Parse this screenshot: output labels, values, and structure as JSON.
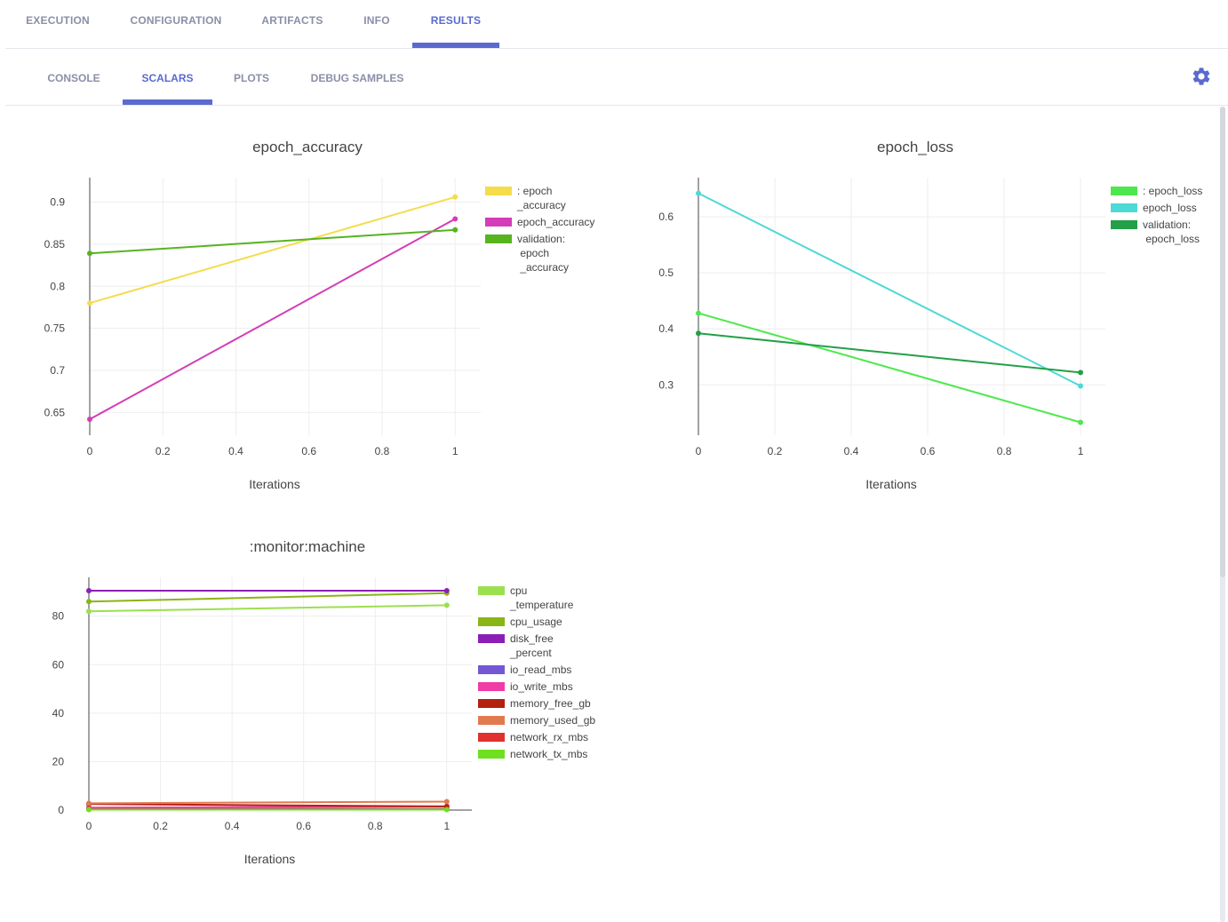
{
  "top_tabs": [
    {
      "label": "EXECUTION",
      "active": false
    },
    {
      "label": "CONFIGURATION",
      "active": false
    },
    {
      "label": "ARTIFACTS",
      "active": false
    },
    {
      "label": "INFO",
      "active": false
    },
    {
      "label": "RESULTS",
      "active": true
    }
  ],
  "sub_tabs": [
    {
      "label": "CONSOLE",
      "active": false
    },
    {
      "label": "SCALARS",
      "active": true
    },
    {
      "label": "PLOTS",
      "active": false
    },
    {
      "label": "DEBUG SAMPLES",
      "active": false
    }
  ],
  "colors": {
    "accent": "#5a6acf",
    "tab_inactive": "#8b8fa8"
  },
  "settings_icon": "gear-icon",
  "chart_data": [
    {
      "type": "line",
      "title": "epoch_accuracy",
      "xlabel": "Iterations",
      "ylabel": "",
      "xlim": [
        0,
        1.07
      ],
      "ylim": [
        0.623,
        0.929
      ],
      "xticks": [
        0,
        0.2,
        0.4,
        0.6,
        0.8,
        1
      ],
      "yticks": [
        0.65,
        0.7,
        0.75,
        0.8,
        0.85,
        0.9
      ],
      "grid": true,
      "series": [
        {
          "name": ": epoch _accuracy",
          "legend_lines": [
            ": epoch",
            "_accuracy"
          ],
          "color": "#f5dc4b",
          "x": [
            0,
            1
          ],
          "values": [
            0.78,
            0.906
          ]
        },
        {
          "name": "epoch_accuracy",
          "legend_lines": [
            "epoch_accuracy"
          ],
          "color": "#d33db8",
          "x": [
            0,
            1
          ],
          "values": [
            0.642,
            0.88
          ]
        },
        {
          "name": "validation: epoch _accuracy",
          "legend_lines": [
            "validation:",
            " epoch",
            " _accuracy"
          ],
          "color": "#56b41f",
          "x": [
            0,
            1
          ],
          "values": [
            0.839,
            0.867
          ]
        }
      ]
    },
    {
      "type": "line",
      "title": "epoch_loss",
      "xlabel": "Iterations",
      "ylabel": "",
      "xlim": [
        0,
        1.065
      ],
      "ylim": [
        0.21,
        0.67
      ],
      "xticks": [
        0,
        0.2,
        0.4,
        0.6,
        0.8,
        1
      ],
      "yticks": [
        0.3,
        0.4,
        0.5,
        0.6
      ],
      "grid": true,
      "series": [
        {
          "name": ": epoch_loss",
          "legend_lines": [
            ": epoch_loss"
          ],
          "color": "#4de84d",
          "x": [
            0,
            1
          ],
          "values": [
            0.428,
            0.233
          ]
        },
        {
          "name": "epoch_loss",
          "legend_lines": [
            "epoch_loss"
          ],
          "color": "#4dd9d6",
          "x": [
            0,
            1
          ],
          "values": [
            0.642,
            0.298
          ]
        },
        {
          "name": "validation: epoch_loss",
          "legend_lines": [
            "validation:",
            " epoch_loss"
          ],
          "color": "#22a048",
          "x": [
            0,
            1
          ],
          "values": [
            0.392,
            0.322
          ]
        }
      ]
    },
    {
      "type": "line",
      "title": ":monitor:machine",
      "xlabel": "Iterations",
      "ylabel": "",
      "xlim": [
        0,
        1.07
      ],
      "ylim": [
        0,
        96
      ],
      "xticks": [
        0,
        0.2,
        0.4,
        0.6,
        0.8,
        1
      ],
      "yticks": [
        0,
        20,
        40,
        60,
        80
      ],
      "grid": true,
      "series": [
        {
          "name": "cpu _temperature",
          "legend_lines": [
            "cpu",
            "_temperature"
          ],
          "color": "#9be04f",
          "x": [
            0,
            1
          ],
          "values": [
            82,
            84.5
          ]
        },
        {
          "name": "cpu_usage",
          "legend_lines": [
            "cpu_usage"
          ],
          "color": "#8ab517",
          "x": [
            0,
            1
          ],
          "values": [
            86,
            89.5
          ]
        },
        {
          "name": "disk_free _percent",
          "legend_lines": [
            "disk_free",
            "_percent"
          ],
          "color": "#8b1fb5",
          "x": [
            0,
            1
          ],
          "values": [
            90.5,
            90.5
          ]
        },
        {
          "name": "io_read_mbs",
          "legend_lines": [
            "io_read_mbs"
          ],
          "color": "#7557d6",
          "x": [
            0,
            1
          ],
          "values": [
            0.5,
            0.5
          ]
        },
        {
          "name": "io_write_mbs",
          "legend_lines": [
            "io_write_mbs"
          ],
          "color": "#f03ca5",
          "x": [
            0,
            1
          ],
          "values": [
            1.0,
            1.5
          ]
        },
        {
          "name": "memory_free_gb",
          "legend_lines": [
            "memory_free_gb"
          ],
          "color": "#b3210f",
          "x": [
            0,
            1
          ],
          "values": [
            2.5,
            1.5
          ]
        },
        {
          "name": "memory_used_gb",
          "legend_lines": [
            "memory_used_gb"
          ],
          "color": "#e07a4f",
          "x": [
            0,
            1
          ],
          "values": [
            2.8,
            3.5
          ]
        },
        {
          "name": "network_rx_mbs",
          "legend_lines": [
            "network_rx_mbs"
          ],
          "color": "#e03030",
          "x": [
            0,
            1
          ],
          "values": [
            0.3,
            0.3
          ]
        },
        {
          "name": "network_tx_mbs",
          "legend_lines": [
            "network_tx_mbs"
          ],
          "color": "#6ee020",
          "x": [
            0,
            1
          ],
          "values": [
            0.2,
            0.2
          ]
        }
      ]
    }
  ]
}
